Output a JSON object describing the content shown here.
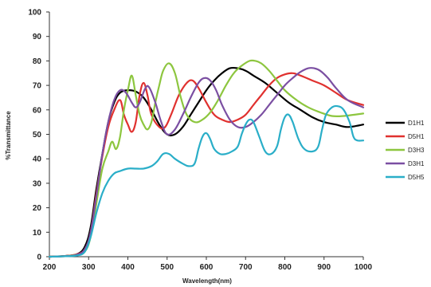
{
  "chart_data": {
    "type": "line",
    "title": "",
    "xlabel": "Wavelength(nm)",
    "ylabel": "%Transmittance",
    "xlim": [
      200,
      1000
    ],
    "ylim": [
      0,
      100
    ],
    "x_ticks": [
      200,
      300,
      400,
      500,
      600,
      700,
      800,
      900,
      1000
    ],
    "y_ticks": [
      0,
      10,
      20,
      30,
      40,
      50,
      60,
      70,
      80,
      90,
      100
    ],
    "grid": false,
    "legend_position": "right",
    "series": [
      {
        "name": "D1H1",
        "color": "#000000",
        "points": [
          [
            200,
            0
          ],
          [
            240,
            0.3
          ],
          [
            270,
            1
          ],
          [
            290,
            4
          ],
          [
            305,
            12
          ],
          [
            320,
            28
          ],
          [
            335,
            42
          ],
          [
            350,
            55
          ],
          [
            365,
            63
          ],
          [
            380,
            67
          ],
          [
            400,
            68
          ],
          [
            420,
            67.5
          ],
          [
            440,
            65
          ],
          [
            460,
            60
          ],
          [
            480,
            54
          ],
          [
            500,
            50
          ],
          [
            520,
            50
          ],
          [
            540,
            53
          ],
          [
            560,
            58
          ],
          [
            580,
            63
          ],
          [
            600,
            68
          ],
          [
            620,
            72
          ],
          [
            640,
            75
          ],
          [
            660,
            77
          ],
          [
            680,
            77
          ],
          [
            700,
            76
          ],
          [
            720,
            74
          ],
          [
            750,
            71
          ],
          [
            780,
            67
          ],
          [
            810,
            63
          ],
          [
            840,
            60
          ],
          [
            870,
            57
          ],
          [
            900,
            55
          ],
          [
            930,
            54
          ],
          [
            960,
            53
          ],
          [
            1000,
            54
          ]
        ]
      },
      {
        "name": "D5H1",
        "color": "#e0312f",
        "points": [
          [
            200,
            0
          ],
          [
            240,
            0.3
          ],
          [
            270,
            1
          ],
          [
            290,
            3
          ],
          [
            305,
            10
          ],
          [
            320,
            26
          ],
          [
            335,
            41
          ],
          [
            350,
            53
          ],
          [
            365,
            60
          ],
          [
            380,
            64
          ],
          [
            390,
            58
          ],
          [
            400,
            54
          ],
          [
            410,
            51
          ],
          [
            420,
            55
          ],
          [
            430,
            66
          ],
          [
            440,
            71
          ],
          [
            450,
            66
          ],
          [
            460,
            58
          ],
          [
            480,
            53
          ],
          [
            495,
            53
          ],
          [
            510,
            58
          ],
          [
            530,
            66
          ],
          [
            550,
            71
          ],
          [
            565,
            72
          ],
          [
            580,
            69
          ],
          [
            600,
            63
          ],
          [
            620,
            58
          ],
          [
            640,
            56
          ],
          [
            660,
            55
          ],
          [
            680,
            56
          ],
          [
            700,
            58
          ],
          [
            720,
            62
          ],
          [
            740,
            66
          ],
          [
            760,
            70
          ],
          [
            780,
            73
          ],
          [
            800,
            74.5
          ],
          [
            820,
            75
          ],
          [
            840,
            74
          ],
          [
            870,
            72
          ],
          [
            900,
            70
          ],
          [
            930,
            67
          ],
          [
            960,
            64
          ],
          [
            1000,
            62
          ]
        ]
      },
      {
        "name": "D3H3",
        "color": "#8dc63f",
        "points": [
          [
            200,
            0
          ],
          [
            240,
            0.2
          ],
          [
            270,
            0.8
          ],
          [
            290,
            2
          ],
          [
            305,
            8
          ],
          [
            320,
            22
          ],
          [
            335,
            36
          ],
          [
            350,
            43
          ],
          [
            360,
            47
          ],
          [
            370,
            44
          ],
          [
            380,
            49
          ],
          [
            390,
            60
          ],
          [
            400,
            68
          ],
          [
            410,
            74
          ],
          [
            420,
            66
          ],
          [
            430,
            58
          ],
          [
            440,
            54
          ],
          [
            450,
            52
          ],
          [
            460,
            55
          ],
          [
            470,
            63
          ],
          [
            480,
            70
          ],
          [
            490,
            76
          ],
          [
            505,
            79
          ],
          [
            520,
            75
          ],
          [
            535,
            65
          ],
          [
            550,
            58
          ],
          [
            570,
            55
          ],
          [
            590,
            56
          ],
          [
            610,
            59
          ],
          [
            630,
            64
          ],
          [
            650,
            70
          ],
          [
            670,
            75
          ],
          [
            690,
            78
          ],
          [
            710,
            80
          ],
          [
            725,
            80
          ],
          [
            740,
            79
          ],
          [
            760,
            76
          ],
          [
            780,
            72
          ],
          [
            800,
            68
          ],
          [
            830,
            64
          ],
          [
            860,
            61
          ],
          [
            890,
            59
          ],
          [
            920,
            57.5
          ],
          [
            950,
            57.5
          ],
          [
            1000,
            58.5
          ]
        ]
      },
      {
        "name": "D3H1",
        "color": "#7b4fa2",
        "points": [
          [
            200,
            0
          ],
          [
            240,
            0.2
          ],
          [
            270,
            0.8
          ],
          [
            290,
            3
          ],
          [
            305,
            10
          ],
          [
            320,
            25
          ],
          [
            335,
            42
          ],
          [
            350,
            55
          ],
          [
            365,
            64
          ],
          [
            380,
            68
          ],
          [
            395,
            67
          ],
          [
            410,
            63
          ],
          [
            420,
            61
          ],
          [
            430,
            63
          ],
          [
            445,
            69
          ],
          [
            455,
            69
          ],
          [
            470,
            63
          ],
          [
            485,
            55
          ],
          [
            500,
            50
          ],
          [
            520,
            52
          ],
          [
            540,
            58
          ],
          [
            560,
            65
          ],
          [
            580,
            71
          ],
          [
            595,
            73
          ],
          [
            610,
            72
          ],
          [
            625,
            68
          ],
          [
            640,
            62
          ],
          [
            660,
            56
          ],
          [
            680,
            53
          ],
          [
            700,
            53
          ],
          [
            720,
            55
          ],
          [
            740,
            58
          ],
          [
            760,
            62
          ],
          [
            780,
            66
          ],
          [
            800,
            70
          ],
          [
            820,
            73
          ],
          [
            840,
            75.5
          ],
          [
            860,
            77
          ],
          [
            875,
            77
          ],
          [
            890,
            76
          ],
          [
            910,
            73
          ],
          [
            930,
            69
          ],
          [
            960,
            64
          ],
          [
            1000,
            61
          ]
        ]
      },
      {
        "name": "D5H5",
        "color": "#2aaec8",
        "points": [
          [
            200,
            0
          ],
          [
            240,
            0.2
          ],
          [
            270,
            0.5
          ],
          [
            290,
            2
          ],
          [
            305,
            8
          ],
          [
            320,
            18
          ],
          [
            335,
            26
          ],
          [
            350,
            31
          ],
          [
            365,
            34
          ],
          [
            380,
            35
          ],
          [
            400,
            36
          ],
          [
            420,
            36
          ],
          [
            440,
            36
          ],
          [
            460,
            37
          ],
          [
            475,
            39
          ],
          [
            490,
            42
          ],
          [
            505,
            42
          ],
          [
            520,
            40
          ],
          [
            540,
            38
          ],
          [
            555,
            37
          ],
          [
            570,
            38
          ],
          [
            580,
            44
          ],
          [
            590,
            49
          ],
          [
            600,
            50.5
          ],
          [
            610,
            48
          ],
          [
            620,
            44
          ],
          [
            635,
            42
          ],
          [
            650,
            42
          ],
          [
            665,
            43
          ],
          [
            680,
            45
          ],
          [
            690,
            50
          ],
          [
            700,
            54
          ],
          [
            710,
            56
          ],
          [
            720,
            55
          ],
          [
            735,
            49
          ],
          [
            750,
            43
          ],
          [
            765,
            42
          ],
          [
            780,
            45
          ],
          [
            790,
            52
          ],
          [
            800,
            57
          ],
          [
            810,
            58
          ],
          [
            820,
            55
          ],
          [
            835,
            48
          ],
          [
            850,
            44
          ],
          [
            870,
            43
          ],
          [
            885,
            45
          ],
          [
            895,
            52
          ],
          [
            905,
            58
          ],
          [
            920,
            61
          ],
          [
            935,
            61.5
          ],
          [
            950,
            60
          ],
          [
            965,
            55
          ],
          [
            975,
            49
          ],
          [
            985,
            47.5
          ],
          [
            1000,
            47.5
          ]
        ]
      }
    ]
  }
}
